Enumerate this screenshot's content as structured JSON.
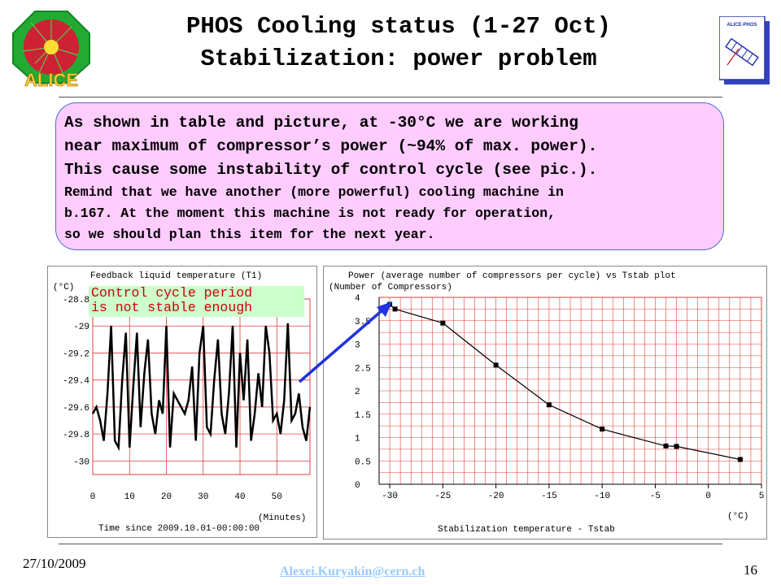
{
  "header": {
    "title_line1": "PHOS Cooling status (1-27 Oct)",
    "title_line2": "Stabilization: power problem",
    "left_logo_text": "ALICE",
    "right_logo_text": "ALICE-PHOS"
  },
  "note": {
    "line1": "As shown in table and picture, at -30°C we are working",
    "line2": "near maximum of compressor’s power (~94% of max. power).",
    "line3": "This cause some instability of control cycle (see pic.).",
    "line4": "Remind that we have another (more powerful) cooling machine in",
    "line5": "b.167. At the moment this machine is not ready for operation,",
    "line6": "so we should plan this item for the next year."
  },
  "callout": {
    "line1": "Control cycle period",
    "line2": "is not stable enough",
    "bg_color": "#ccffcc"
  },
  "footer": {
    "date": "27/10/2009",
    "email": "Alexei.Kuryakin@cern.ch",
    "page_number": "16"
  },
  "colors": {
    "grid": "#e04040",
    "arrow": "#2233dd",
    "note_bg": "#ffccff"
  },
  "chart_data": [
    {
      "type": "line",
      "title": "Feedback liquid temperature (T1)",
      "ylabel": "(°C)",
      "xlabel": "(Minutes)",
      "subtitle": "Time since 2009.10.01-00:00:00",
      "ylim": [
        -30.1,
        -28.8
      ],
      "xlim": [
        0,
        59
      ],
      "x_ticks": [
        "0",
        "10",
        "20",
        "30",
        "40",
        "50"
      ],
      "y_ticks": [
        "-28.8",
        "-29",
        "-29.2",
        "-29.4",
        "-29.6",
        "-29.8",
        "-30"
      ],
      "grid": true,
      "series": [
        {
          "x": [
            0,
            1,
            2,
            3,
            4,
            5,
            6,
            7,
            8,
            9,
            10,
            11,
            12,
            13,
            14,
            15,
            16,
            17,
            18,
            19,
            20,
            21,
            22,
            23,
            24,
            25,
            26,
            27,
            28,
            29,
            30,
            31,
            32,
            33,
            34,
            35,
            36,
            37,
            38,
            39,
            40,
            41,
            42,
            43,
            44,
            45,
            46,
            47,
            48,
            49,
            50,
            51,
            52,
            53,
            54,
            55,
            56,
            57,
            58,
            59
          ],
          "y": [
            -29.65,
            -29.6,
            -29.7,
            -29.85,
            -29.5,
            -29.0,
            -29.85,
            -29.9,
            -29.4,
            -29.05,
            -29.9,
            -29.45,
            -29.05,
            -29.75,
            -29.35,
            -29.1,
            -29.65,
            -29.8,
            -29.55,
            -29.65,
            -29.0,
            -29.9,
            -29.5,
            -29.55,
            -29.6,
            -29.65,
            -29.55,
            -29.3,
            -29.85,
            -29.2,
            -29.0,
            -29.75,
            -29.8,
            -29.4,
            -29.1,
            -29.65,
            -29.8,
            -29.5,
            -29.0,
            -29.9,
            -29.2,
            -29.55,
            -29.1,
            -29.85,
            -29.65,
            -29.35,
            -29.6,
            -29.0,
            -29.2,
            -29.7,
            -29.65,
            -29.8,
            -29.55,
            -28.98,
            -29.7,
            -29.65,
            -29.5,
            -29.75,
            -29.85,
            -29.6
          ]
        }
      ]
    },
    {
      "type": "line",
      "title": "Power (average number of compressors per cycle) vs Tstab plot",
      "ylabel": "(Number of Compressors)",
      "xlabel": "Stabilization temperature - Tstab",
      "x_unit": "(°C)",
      "xlim": [
        -31,
        5
      ],
      "ylim": [
        0,
        4
      ],
      "x_ticks": [
        "-30",
        "-25",
        "-20",
        "-15",
        "-10",
        "-5",
        "0",
        "5"
      ],
      "y_ticks": [
        "0",
        "0.5",
        "1",
        "1.5",
        "2",
        "2.5",
        "3",
        "3.5",
        "4"
      ],
      "grid": true,
      "series": [
        {
          "x": [
            -30,
            -29.5,
            -25,
            -20,
            -15,
            -10,
            -4,
            -3,
            3
          ],
          "y": [
            3.85,
            3.75,
            3.45,
            2.55,
            1.7,
            1.18,
            0.82,
            0.81,
            0.53
          ]
        }
      ]
    }
  ]
}
